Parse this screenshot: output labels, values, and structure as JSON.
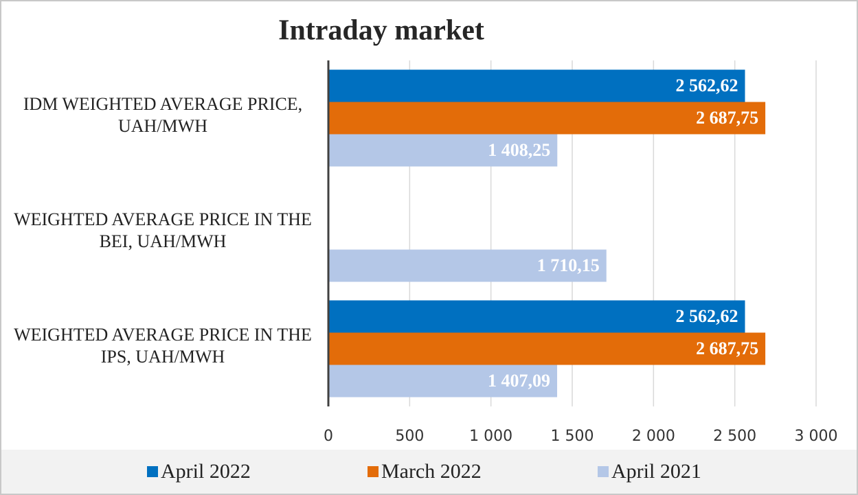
{
  "chart_data": {
    "type": "barh",
    "title": "Intraday market",
    "categories": [
      "IDM WEIGHTED AVERAGE PRICE, UAH/MWH",
      "WEIGHTED AVERAGE PRICE IN THE BEI, UAH/MWH",
      "WEIGHTED AVERAGE PRICE IN THE IPS, UAH/MWH"
    ],
    "series": [
      {
        "name": "April 2022",
        "color": "#0070c0",
        "values": [
          2562.62,
          null,
          2562.62
        ],
        "value_labels": [
          "2 562,62",
          null,
          "2 562,62"
        ]
      },
      {
        "name": "March 2022",
        "color": "#e36c09",
        "values": [
          2687.75,
          null,
          2687.75
        ],
        "value_labels": [
          "2 687,75",
          null,
          "2 687,75"
        ]
      },
      {
        "name": "April 2021",
        "color": "#b4c7e7",
        "values": [
          1408.25,
          1710.15,
          1407.09
        ],
        "value_labels": [
          "1 408,25",
          "1 710,15",
          "1 407,09"
        ]
      }
    ],
    "xlim": [
      0,
      3000
    ],
    "xticks": [
      0,
      500,
      {
        "value": 1000,
        "label": "1 000"
      },
      {
        "value": 1500,
        "label": "1 500"
      },
      {
        "value": 2000,
        "label": "2 000"
      },
      {
        "value": 2500,
        "label": "2 500"
      },
      {
        "value": 3000,
        "label": "3 000"
      }
    ],
    "grid": true,
    "legend": "bottom"
  }
}
